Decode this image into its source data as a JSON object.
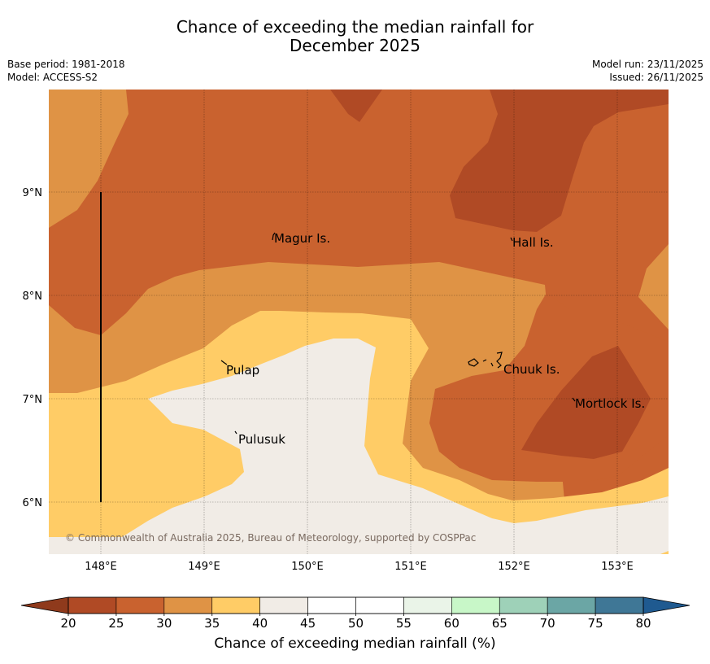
{
  "title_line1": "Chance of exceeding the median rainfall for",
  "title_line2": "December 2025",
  "meta": {
    "base_period": "Base period: 1981-2018",
    "model": "Model: ACCESS-S2",
    "model_run": "Model run: 23/11/2025",
    "issued": "Issued: 26/11/2025"
  },
  "axes": {
    "lon_ticks": [
      "148°E",
      "149°E",
      "150°E",
      "151°E",
      "152°E",
      "153°E"
    ],
    "lat_ticks": [
      "9°N",
      "8°N",
      "7°N",
      "6°N"
    ]
  },
  "places": {
    "magur": "Magur Is.",
    "hall": "Hall Is.",
    "pulap": "Pulap",
    "chuuk": "Chuuk Is.",
    "mortlock": "Mortlock Is.",
    "pulusuk": "Pulusuk"
  },
  "copyright": "© Commonwealth of Australia 2025, Bureau of Meteorology, supported by COSPPac",
  "colorbar": {
    "ticks": [
      "20",
      "25",
      "30",
      "35",
      "40",
      "45",
      "50",
      "55",
      "60",
      "65",
      "70",
      "75",
      "80"
    ],
    "label": "Chance of exceeding median rainfall (%)",
    "colors": [
      "#b04a25",
      "#c9622f",
      "#df9345",
      "#ffcc66",
      "#f1ece6",
      "#ffffff",
      "#ffffff",
      "#eaf4e8",
      "#c8f7c8",
      "#9ed1b8",
      "#6ba6a5",
      "#3f7796"
    ],
    "under_color": "#8f3a1c",
    "over_color": "#1f5a90"
  },
  "zone_colors": {
    "c20": "#b04a25",
    "c25": "#c9622f",
    "c30": "#df9345",
    "c35": "#ffcc66",
    "c40": "#f1ece6"
  }
}
